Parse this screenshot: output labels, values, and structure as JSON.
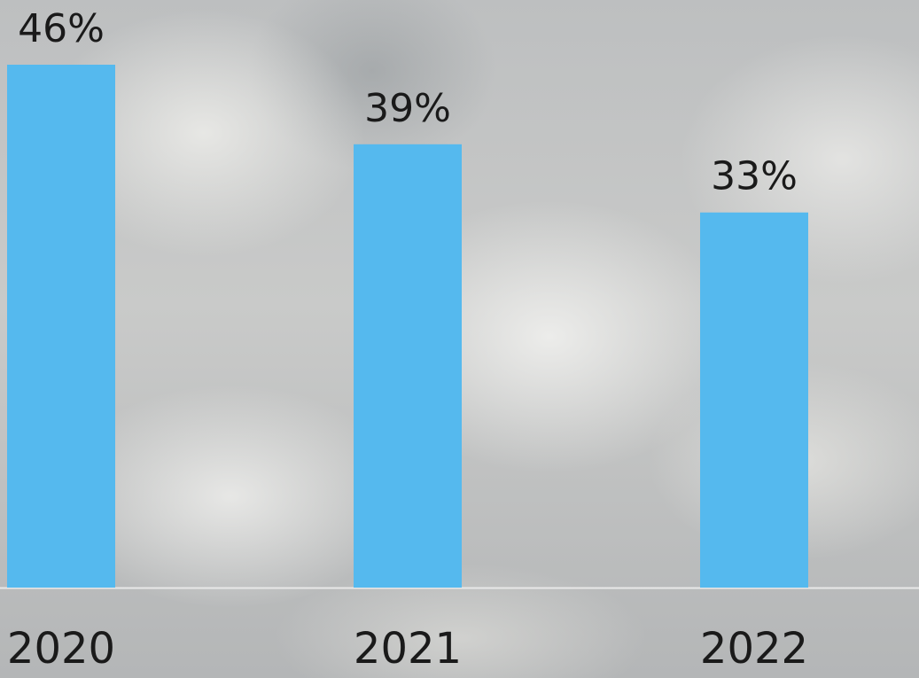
{
  "chart_data": {
    "type": "bar",
    "categories": [
      "2020",
      "2021",
      "2022"
    ],
    "values": [
      46,
      39,
      33
    ],
    "value_labels": [
      "46%",
      "39%",
      "33%"
    ],
    "color": "#55b9ee"
  }
}
